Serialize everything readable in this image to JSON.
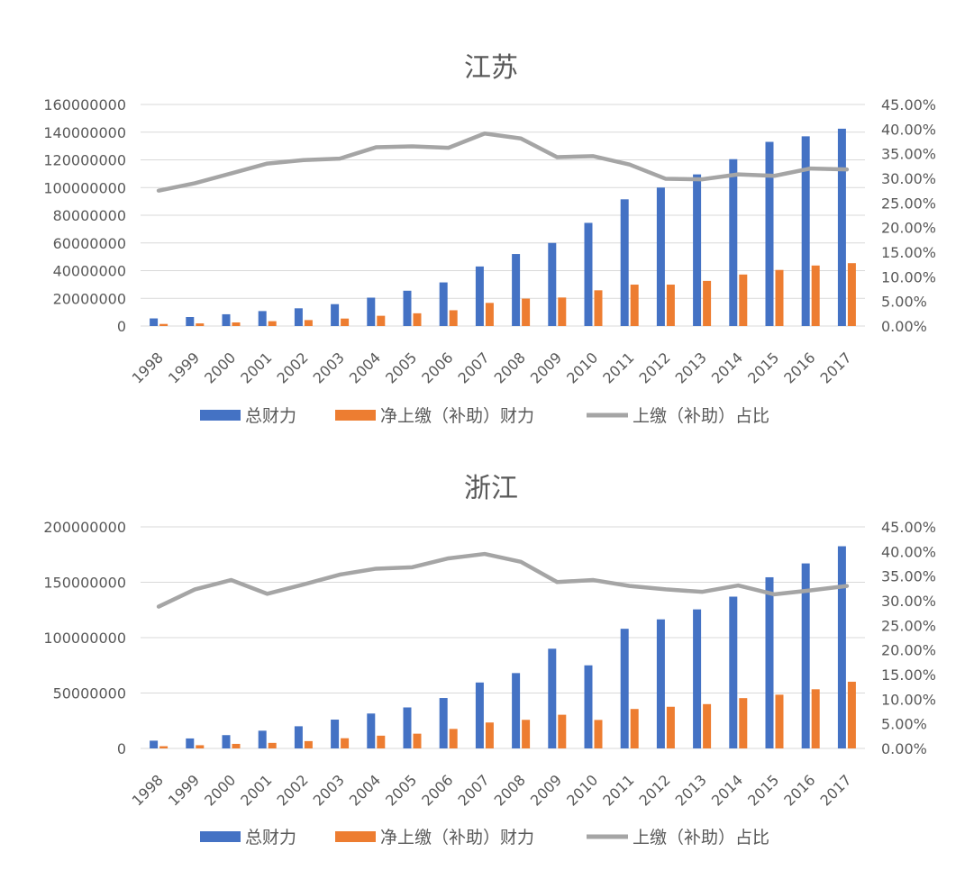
{
  "colors": {
    "total": "#4472C4",
    "net": "#ED7D31",
    "ratio": "#A5A5A5",
    "grid": "#D9D9D9",
    "text": "#595959"
  },
  "chart_data": [
    {
      "type": "bar",
      "title": "江苏",
      "categories": [
        "1998",
        "1999",
        "2000",
        "2001",
        "2002",
        "2003",
        "2004",
        "2005",
        "2006",
        "2007",
        "2008",
        "2009",
        "2010",
        "2011",
        "2012",
        "2013",
        "2014",
        "2015",
        "2016",
        "2017"
      ],
      "series": [
        {
          "name": "总财力",
          "type": "bar",
          "axis": "left",
          "values": [
            5500000,
            6500000,
            8500000,
            10800000,
            12800000,
            15800000,
            20500000,
            25500000,
            31500000,
            43000000,
            52000000,
            60000000,
            74500000,
            91500000,
            100000000,
            109500000,
            120500000,
            133000000,
            137000000,
            142500000
          ]
        },
        {
          "name": "净上缴（补助）财力",
          "type": "bar",
          "axis": "left",
          "values": [
            1500000,
            1900000,
            2600000,
            3500000,
            4300000,
            5400000,
            7400000,
            9200000,
            11400000,
            16700000,
            19800000,
            20600000,
            25800000,
            29900000,
            29900000,
            32600000,
            37200000,
            40500000,
            43700000,
            45400000
          ]
        },
        {
          "name": "上缴（补助）占比",
          "type": "line",
          "axis": "right",
          "values": [
            0.275,
            0.29,
            0.31,
            0.33,
            0.337,
            0.34,
            0.363,
            0.365,
            0.362,
            0.391,
            0.381,
            0.343,
            0.345,
            0.328,
            0.299,
            0.298,
            0.308,
            0.305,
            0.32,
            0.318
          ]
        }
      ],
      "ylim": [
        0,
        160000000
      ],
      "y_ticks": [
        "0",
        "20000000",
        "40000000",
        "60000000",
        "80000000",
        "100000000",
        "120000000",
        "140000000",
        "160000000"
      ],
      "y2lim": [
        0,
        0.45
      ],
      "y2_ticks": [
        "0.00%",
        "5.00%",
        "10.00%",
        "15.00%",
        "20.00%",
        "25.00%",
        "30.00%",
        "35.00%",
        "40.00%",
        "45.00%"
      ],
      "grid": true,
      "legend": "bottom"
    },
    {
      "type": "bar",
      "title": "浙江",
      "categories": [
        "1998",
        "1999",
        "2000",
        "2001",
        "2002",
        "2003",
        "2004",
        "2005",
        "2006",
        "2007",
        "2008",
        "2009",
        "2010",
        "2011",
        "2012",
        "2013",
        "2014",
        "2015",
        "2016",
        "2017"
      ],
      "series": [
        {
          "name": "总财力",
          "type": "bar",
          "axis": "left",
          "values": [
            7000000,
            9000000,
            12000000,
            16000000,
            20000000,
            26000000,
            31500000,
            37000000,
            45500000,
            59500000,
            68000000,
            90000000,
            75000000,
            108000000,
            116500000,
            125500000,
            137000000,
            154500000,
            167000000,
            182500000
          ]
        },
        {
          "name": "净上缴（补助）财力",
          "type": "bar",
          "axis": "left",
          "values": [
            2000000,
            2900000,
            4100000,
            5000000,
            6600000,
            9200000,
            11500000,
            13300000,
            17600000,
            23400000,
            25800000,
            30400000,
            25700000,
            35600000,
            37600000,
            40000000,
            45400000,
            48500000,
            53400000,
            60200000
          ]
        },
        {
          "name": "上缴（补助）占比",
          "type": "line",
          "axis": "right",
          "values": [
            0.288,
            0.323,
            0.342,
            0.314,
            0.333,
            0.353,
            0.365,
            0.368,
            0.386,
            0.395,
            0.379,
            0.338,
            0.342,
            0.33,
            0.323,
            0.318,
            0.331,
            0.313,
            0.321,
            0.33
          ]
        }
      ],
      "ylim": [
        0,
        200000000
      ],
      "y_ticks": [
        "0",
        "50000000",
        "100000000",
        "150000000",
        "200000000"
      ],
      "y2lim": [
        0,
        0.45
      ],
      "y2_ticks": [
        "0.00%",
        "5.00%",
        "10.00%",
        "15.00%",
        "20.00%",
        "25.00%",
        "30.00%",
        "35.00%",
        "40.00%",
        "45.00%"
      ],
      "grid": true,
      "legend": "bottom"
    }
  ]
}
